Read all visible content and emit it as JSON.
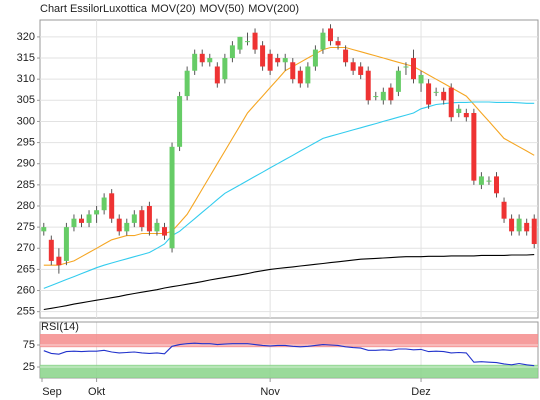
{
  "chart_data": [
    {
      "type": "candlestick",
      "title": "Chart EssilorLuxottica",
      "title_color": "#e8501e",
      "categories": [
        null,
        null,
        null,
        null,
        null,
        null,
        null,
        "Okt",
        null,
        null,
        null,
        null,
        null,
        null,
        null,
        null,
        null,
        null,
        null,
        null,
        null,
        null,
        null,
        null,
        null,
        null,
        null,
        null,
        null,
        null,
        "Nov",
        null,
        null,
        null,
        null,
        null,
        null,
        null,
        null,
        null,
        null,
        null,
        null,
        null,
        null,
        null,
        null,
        null,
        null,
        null,
        "Dez",
        null,
        null,
        null,
        null,
        null,
        null,
        null,
        null,
        null,
        null,
        null,
        null,
        null,
        null,
        null
      ],
      "first_label": "Sep",
      "open": [
        274,
        272,
        268,
        267,
        275,
        277,
        276,
        278,
        279,
        283,
        277,
        274,
        276,
        279,
        280,
        274,
        275,
        270,
        294,
        306,
        312,
        316,
        314,
        313,
        310,
        315,
        317,
        319,
        321,
        318,
        316,
        315,
        314,
        314,
        312,
        309,
        313,
        317,
        322,
        319,
        317,
        314,
        313,
        312,
        306,
        305,
        308,
        307,
        313,
        315,
        309,
        309,
        307,
        307,
        308,
        302,
        302,
        302,
        285,
        286,
        287,
        281,
        277,
        274,
        276,
        277
      ],
      "high": [
        276,
        273,
        270,
        276,
        278,
        278,
        279,
        280,
        283,
        284,
        278,
        277,
        279,
        280,
        281,
        277,
        276,
        295,
        307,
        313,
        317,
        317,
        316,
        314,
        316,
        319,
        320,
        321,
        322,
        319,
        317,
        316,
        316,
        315,
        313,
        314,
        318,
        322,
        323,
        320,
        318,
        315,
        314,
        313,
        307,
        308,
        309,
        313,
        314,
        317,
        312,
        310,
        308,
        308,
        309,
        304,
        303,
        303,
        288,
        287,
        288,
        282,
        278,
        278,
        277,
        278
      ],
      "low": [
        273,
        266,
        264,
        266,
        274,
        275,
        275,
        276,
        278,
        276,
        273,
        273,
        275,
        274,
        273,
        273,
        272,
        269,
        293,
        305,
        311,
        313,
        313,
        308,
        309,
        314,
        316,
        318,
        316,
        312,
        311,
        313,
        312,
        309,
        308,
        308,
        312,
        316,
        318,
        317,
        313,
        311,
        310,
        304,
        305,
        304,
        304,
        306,
        311,
        309,
        307,
        303,
        306,
        304,
        300,
        301,
        300,
        285,
        284,
        285,
        282,
        276,
        273,
        273,
        273,
        270
      ],
      "close": [
        275,
        267,
        266,
        275,
        277,
        276,
        278,
        279,
        282,
        277,
        274,
        276,
        278,
        275,
        274,
        276,
        273,
        294,
        306,
        312,
        316,
        314,
        315,
        309,
        315,
        318,
        320,
        319,
        317,
        313,
        312,
        314,
        315,
        310,
        309,
        313,
        317,
        321,
        319,
        318,
        314,
        312,
        311,
        305,
        306,
        307,
        305,
        312,
        313,
        310,
        311,
        304,
        307,
        305,
        301,
        303,
        301,
        286,
        287,
        286,
        283,
        277,
        274,
        277,
        274,
        271
      ],
      "up_color": "#66cc66",
      "down_color": "#ee3333",
      "series": [
        {
          "name": "MOV(20)",
          "color": "#f5a623",
          "values": [
            266,
            266,
            266,
            266.5,
            267,
            268,
            269,
            270,
            271,
            272,
            272.5,
            273,
            273,
            273.5,
            273.5,
            273.5,
            273.5,
            274,
            276,
            278,
            281,
            284,
            287,
            290,
            293,
            296,
            299,
            302,
            304,
            306,
            308,
            310,
            312,
            313,
            314,
            315,
            316,
            317,
            317.5,
            317.5,
            317.5,
            317,
            316.5,
            316,
            315.5,
            315,
            314.5,
            314,
            313.5,
            313,
            312,
            311,
            310,
            309,
            308,
            307,
            306,
            304,
            302,
            300,
            298,
            296,
            295,
            294,
            293,
            292
          ]
        },
        {
          "name": "MOV(50)",
          "color": "#33ccee",
          "values": [
            260.5,
            261.2,
            261.9,
            262.6,
            263.3,
            264,
            264.7,
            265.4,
            266,
            266.5,
            267,
            267.5,
            268,
            268.5,
            269,
            270,
            271,
            273,
            274,
            275.5,
            277,
            278.5,
            280,
            281.5,
            283,
            284,
            285,
            286,
            287,
            288,
            289,
            290,
            291,
            292,
            293,
            294,
            295,
            296,
            296.5,
            297,
            297.5,
            298,
            298.5,
            299,
            299.5,
            300,
            300.5,
            301,
            301.5,
            302,
            303,
            303.5,
            304,
            304.2,
            304.4,
            304.5,
            304.5,
            304.6,
            304.6,
            304.6,
            304.5,
            304.5,
            304.5,
            304.4,
            304.3,
            304.3
          ]
        },
        {
          "name": "MOV(200)",
          "color": "#000000",
          "values": [
            255.5,
            255.8,
            256.1,
            256.4,
            256.8,
            257.1,
            257.4,
            257.7,
            258,
            258.3,
            258.6,
            259,
            259.3,
            259.6,
            259.9,
            260.2,
            260.6,
            260.9,
            261.2,
            261.5,
            261.8,
            262.1,
            262.5,
            262.8,
            263.1,
            263.4,
            263.7,
            264,
            264.4,
            264.7,
            265,
            265.2,
            265.4,
            265.6,
            265.8,
            266,
            266.2,
            266.4,
            266.6,
            266.8,
            267,
            267.2,
            267.4,
            267.5,
            267.6,
            267.7,
            267.8,
            267.9,
            268,
            268,
            268,
            268.1,
            268.1,
            268.1,
            268.2,
            268.2,
            268.2,
            268.2,
            268.3,
            268.3,
            268.3,
            268.3,
            268.4,
            268.4,
            268.4,
            268.5
          ]
        }
      ],
      "ylim": [
        253.5,
        324
      ],
      "yticks": [
        255,
        260,
        265,
        270,
        275,
        280,
        285,
        290,
        295,
        300,
        305,
        310,
        315,
        320
      ],
      "grid": true
    },
    {
      "type": "line",
      "title": "RSI(14)",
      "color": "#2233cc",
      "values": [
        62,
        56,
        54,
        60,
        61,
        60,
        61,
        61,
        63,
        59,
        57,
        58,
        59,
        57,
        56,
        57,
        55,
        72,
        76,
        78,
        79,
        78,
        78,
        76,
        77,
        78,
        78,
        78,
        76,
        74,
        73,
        74,
        74,
        72,
        71,
        72,
        74,
        76,
        75,
        74,
        71,
        69,
        68,
        63,
        63,
        64,
        63,
        66,
        66,
        64,
        65,
        60,
        61,
        60,
        57,
        58,
        57,
        36,
        37,
        36,
        35,
        32,
        30,
        33,
        30,
        28
      ],
      "ylim": [
        0,
        100
      ],
      "yticks": [
        25,
        75
      ],
      "bands": [
        {
          "from": 70,
          "to": 100,
          "color": "#f48c8c"
        },
        {
          "from": 0,
          "to": 30,
          "color": "#88d488"
        }
      ]
    }
  ]
}
